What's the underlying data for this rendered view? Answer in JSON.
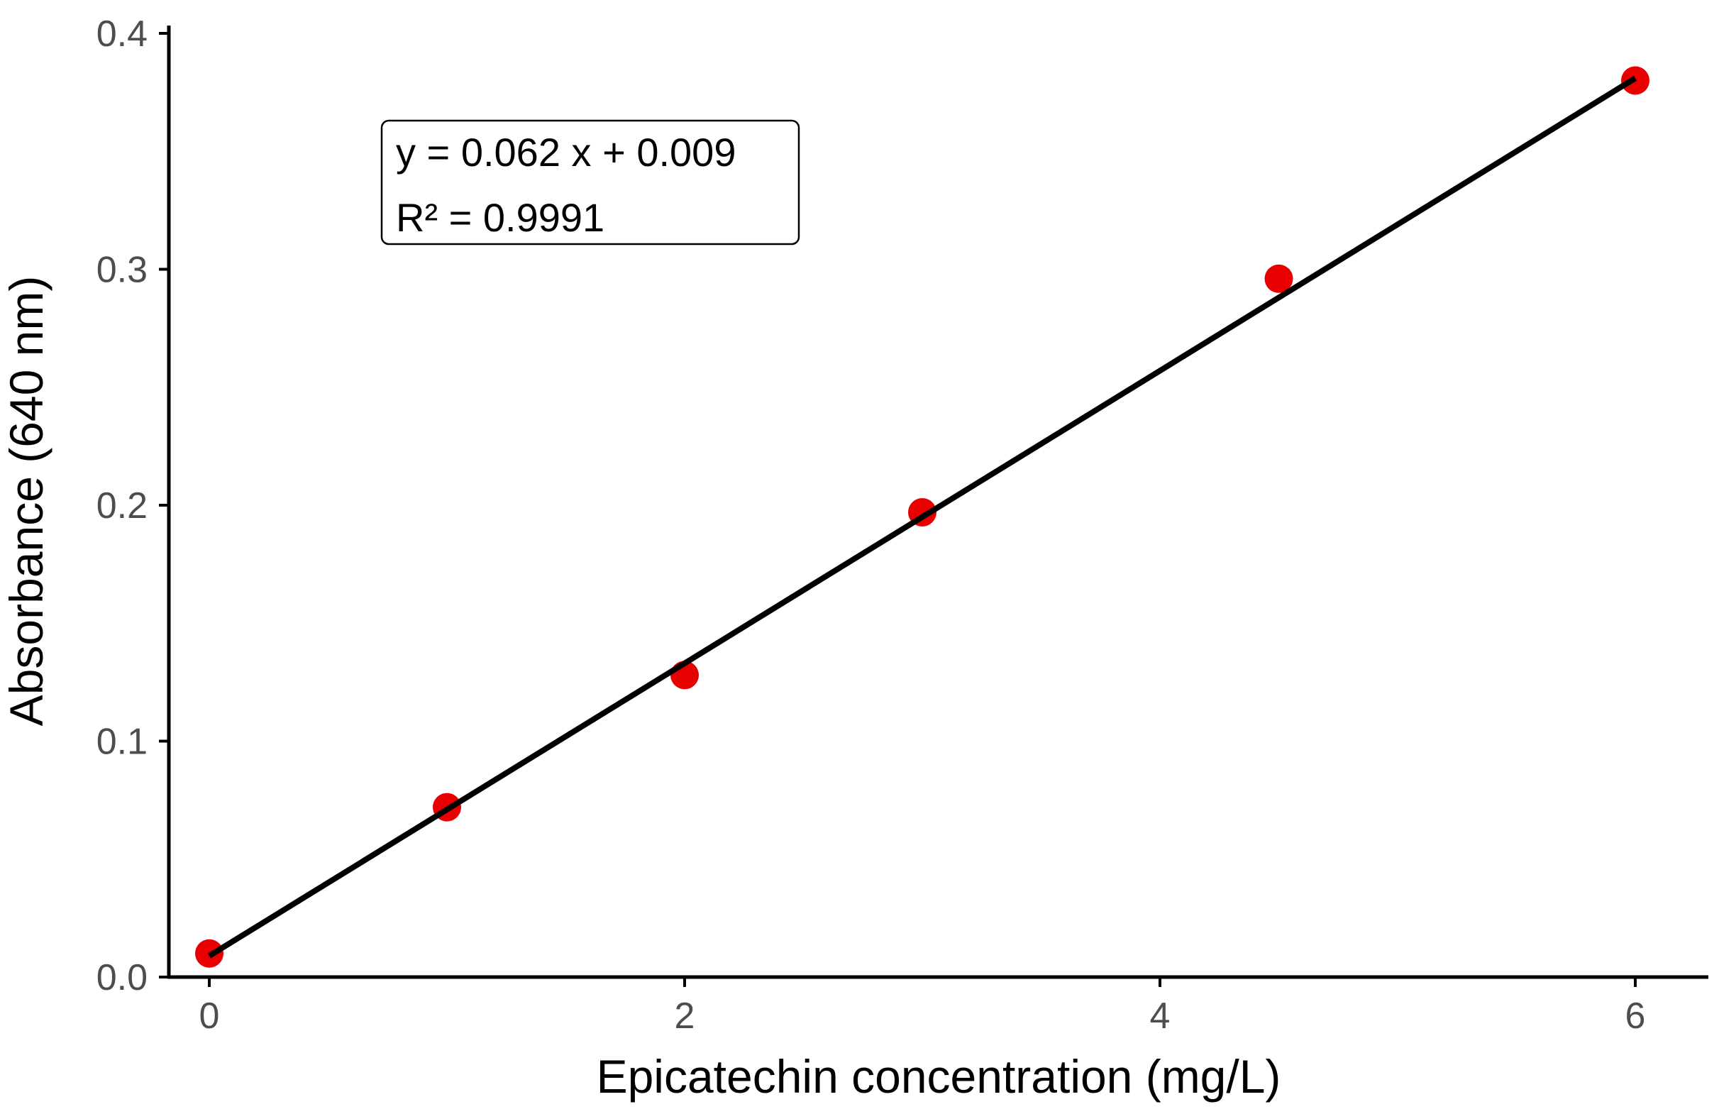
{
  "chart_data": {
    "type": "scatter",
    "title": "",
    "xlabel": "Epicatechin concentration (mg/L)",
    "ylabel": "Absorbance (640 nm)",
    "xlim": [
      -0.1,
      6.3
    ],
    "ylim": [
      0.0,
      0.4
    ],
    "x_ticks": [
      0,
      2,
      4,
      6
    ],
    "y_ticks": [
      0.0,
      0.1,
      0.2,
      0.3,
      0.4
    ],
    "x_tick_labels": [
      "0",
      "2",
      "4",
      "6"
    ],
    "y_tick_labels": [
      "0.0",
      "0.1",
      "0.2",
      "0.3",
      "0.4"
    ],
    "grid": false,
    "legend": "none",
    "series": [
      {
        "color": "#e80000",
        "x": [
          0,
          1,
          2,
          3,
          4.5,
          6
        ],
        "y": [
          0.01,
          0.072,
          0.128,
          0.197,
          0.296,
          0.38
        ]
      }
    ],
    "fit_line": {
      "color": "#000000",
      "slope": 0.062,
      "intercept": 0.009,
      "x_range": [
        0,
        6
      ]
    },
    "annotation": {
      "equation": "y = 0.062 x + 0.009",
      "r_squared": "R² = 0.9991"
    }
  }
}
